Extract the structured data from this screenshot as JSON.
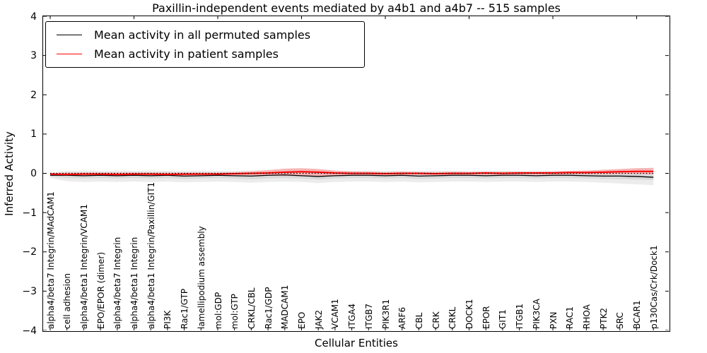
{
  "chart_data": {
    "type": "line",
    "title": "Paxillin-independent events mediated by a4b1 and a4b7 -- 515 samples",
    "xlabel": "Cellular Entities",
    "ylabel": "Inferred Activity",
    "ylim": [
      -4,
      4
    ],
    "yticks": [
      4,
      3,
      2,
      1,
      0,
      -1,
      -2,
      -3,
      -4
    ],
    "ytick_labels": [
      "4",
      "3",
      "2",
      "1",
      "0",
      "−1",
      "−2",
      "−3",
      "−4"
    ],
    "top_tick_every": 5,
    "grid": false,
    "legend_position": "upper left",
    "categories": [
      "alpha4/beta7 Integrin/MAdCAM1",
      "cell adhesion",
      "alpha4/beta1 Integrin/VCAM1",
      "EPO/EPOR (dimer)",
      "alpha4/beta7 Integrin",
      "alpha4/beta1 Integrin",
      "alpha4/beta1 Integrin/Paxillin/GIT1",
      "PI3K",
      "Rac1/GTP",
      "lamellipodium assembly",
      "mol:GDP",
      "mol:GTP",
      "CRKL/CBL",
      "Rac1/GDP",
      "MADCAM1",
      "EPO",
      "JAK2",
      "VCAM1",
      "ITGA4",
      "ITGB7",
      "PIK3R1",
      "ARF6",
      "CBL",
      "CRK",
      "CRKL",
      "DOCK1",
      "EPOR",
      "GIT1",
      "ITGB1",
      "PIK3CA",
      "PXN",
      "RAC1",
      "RHOA",
      "PTK2",
      "SRC",
      "BCAR1",
      "p130Cas/Crk/Dock1"
    ],
    "series": [
      {
        "name": "Mean activity in all permuted samples",
        "color": "#000000",
        "style": "solid",
        "width": 1.3,
        "values": [
          -0.05,
          -0.05,
          -0.06,
          -0.05,
          -0.06,
          -0.05,
          -0.06,
          -0.05,
          -0.07,
          -0.06,
          -0.05,
          -0.06,
          -0.07,
          -0.05,
          -0.04,
          -0.06,
          -0.08,
          -0.06,
          -0.05,
          -0.05,
          -0.06,
          -0.05,
          -0.07,
          -0.06,
          -0.05,
          -0.05,
          -0.06,
          -0.05,
          -0.05,
          -0.06,
          -0.05,
          -0.05,
          -0.06,
          -0.07,
          -0.07,
          -0.08,
          -0.1
        ]
      },
      {
        "name": "Mean activity in patient samples",
        "color": "#ff0000",
        "style": "solid",
        "width": 2,
        "values": [
          -0.02,
          -0.03,
          -0.02,
          -0.02,
          -0.03,
          -0.02,
          -0.02,
          -0.03,
          -0.02,
          -0.02,
          -0.02,
          -0.01,
          0.0,
          0.01,
          0.03,
          0.04,
          0.03,
          0.01,
          0.0,
          0.0,
          -0.01,
          0.0,
          0.0,
          -0.01,
          0.0,
          0.0,
          0.01,
          0.0,
          0.01,
          0.01,
          0.01,
          0.02,
          0.02,
          0.03,
          0.04,
          0.05,
          0.05
        ]
      }
    ],
    "zero_line": {
      "value": 0,
      "color": "#000000",
      "style": "dotted",
      "width": 1.3
    },
    "bands": [
      {
        "name": "permuted-range-outer",
        "color": "#ececec",
        "hi": [
          0.02,
          0.06,
          0.07,
          0.06,
          0.07,
          0.06,
          0.07,
          0.06,
          0.06,
          0.07,
          0.06,
          0.06,
          0.07,
          0.08,
          0.08,
          0.08,
          0.07,
          0.06,
          0.06,
          0.07,
          0.06,
          0.06,
          0.06,
          0.07,
          0.06,
          0.06,
          0.07,
          0.06,
          0.06,
          0.07,
          0.06,
          0.06,
          0.07,
          0.07,
          0.08,
          0.08,
          0.06
        ],
        "lo": [
          -0.12,
          -0.2,
          -0.22,
          -0.21,
          -0.22,
          -0.21,
          -0.22,
          -0.21,
          -0.23,
          -0.22,
          -0.21,
          -0.22,
          -0.24,
          -0.22,
          -0.21,
          -0.22,
          -0.25,
          -0.22,
          -0.21,
          -0.21,
          -0.22,
          -0.21,
          -0.23,
          -0.22,
          -0.21,
          -0.21,
          -0.22,
          -0.21,
          -0.21,
          -0.22,
          -0.21,
          -0.21,
          -0.22,
          -0.24,
          -0.26,
          -0.28,
          -0.3
        ]
      },
      {
        "name": "permuted-range-inner",
        "color": "#d9d9d9",
        "hi": [
          0.0,
          0.01,
          0.02,
          0.01,
          0.02,
          0.01,
          0.02,
          0.01,
          0.01,
          0.02,
          0.01,
          0.01,
          0.02,
          0.03,
          0.03,
          0.03,
          0.02,
          0.01,
          0.01,
          0.02,
          0.01,
          0.01,
          0.01,
          0.02,
          0.01,
          0.01,
          0.02,
          0.01,
          0.01,
          0.02,
          0.01,
          0.01,
          0.02,
          0.02,
          0.03,
          0.03,
          0.02
        ],
        "lo": [
          -0.08,
          -0.12,
          -0.13,
          -0.12,
          -0.13,
          -0.12,
          -0.13,
          -0.12,
          -0.14,
          -0.13,
          -0.12,
          -0.13,
          -0.15,
          -0.13,
          -0.12,
          -0.13,
          -0.16,
          -0.13,
          -0.12,
          -0.12,
          -0.13,
          -0.12,
          -0.14,
          -0.13,
          -0.12,
          -0.12,
          -0.13,
          -0.12,
          -0.12,
          -0.13,
          -0.12,
          -0.12,
          -0.13,
          -0.14,
          -0.15,
          -0.16,
          -0.17
        ]
      },
      {
        "name": "patient-range",
        "color": "#f5b5b5",
        "hi": [
          0.01,
          0.02,
          0.02,
          0.02,
          0.02,
          0.02,
          0.02,
          0.02,
          0.02,
          0.02,
          0.02,
          0.03,
          0.05,
          0.08,
          0.12,
          0.13,
          0.11,
          0.07,
          0.05,
          0.04,
          0.03,
          0.04,
          0.03,
          0.03,
          0.04,
          0.03,
          0.04,
          0.04,
          0.04,
          0.04,
          0.05,
          0.06,
          0.07,
          0.09,
          0.11,
          0.13,
          0.14
        ],
        "lo": [
          -0.05,
          -0.06,
          -0.06,
          -0.06,
          -0.06,
          -0.06,
          -0.06,
          -0.06,
          -0.07,
          -0.06,
          -0.06,
          -0.05,
          -0.05,
          -0.06,
          -0.07,
          -0.07,
          -0.07,
          -0.06,
          -0.05,
          -0.04,
          -0.05,
          -0.04,
          -0.04,
          -0.05,
          -0.04,
          -0.04,
          -0.04,
          -0.04,
          -0.04,
          -0.04,
          -0.04,
          -0.03,
          -0.03,
          -0.03,
          -0.02,
          -0.02,
          -0.03
        ]
      }
    ]
  }
}
